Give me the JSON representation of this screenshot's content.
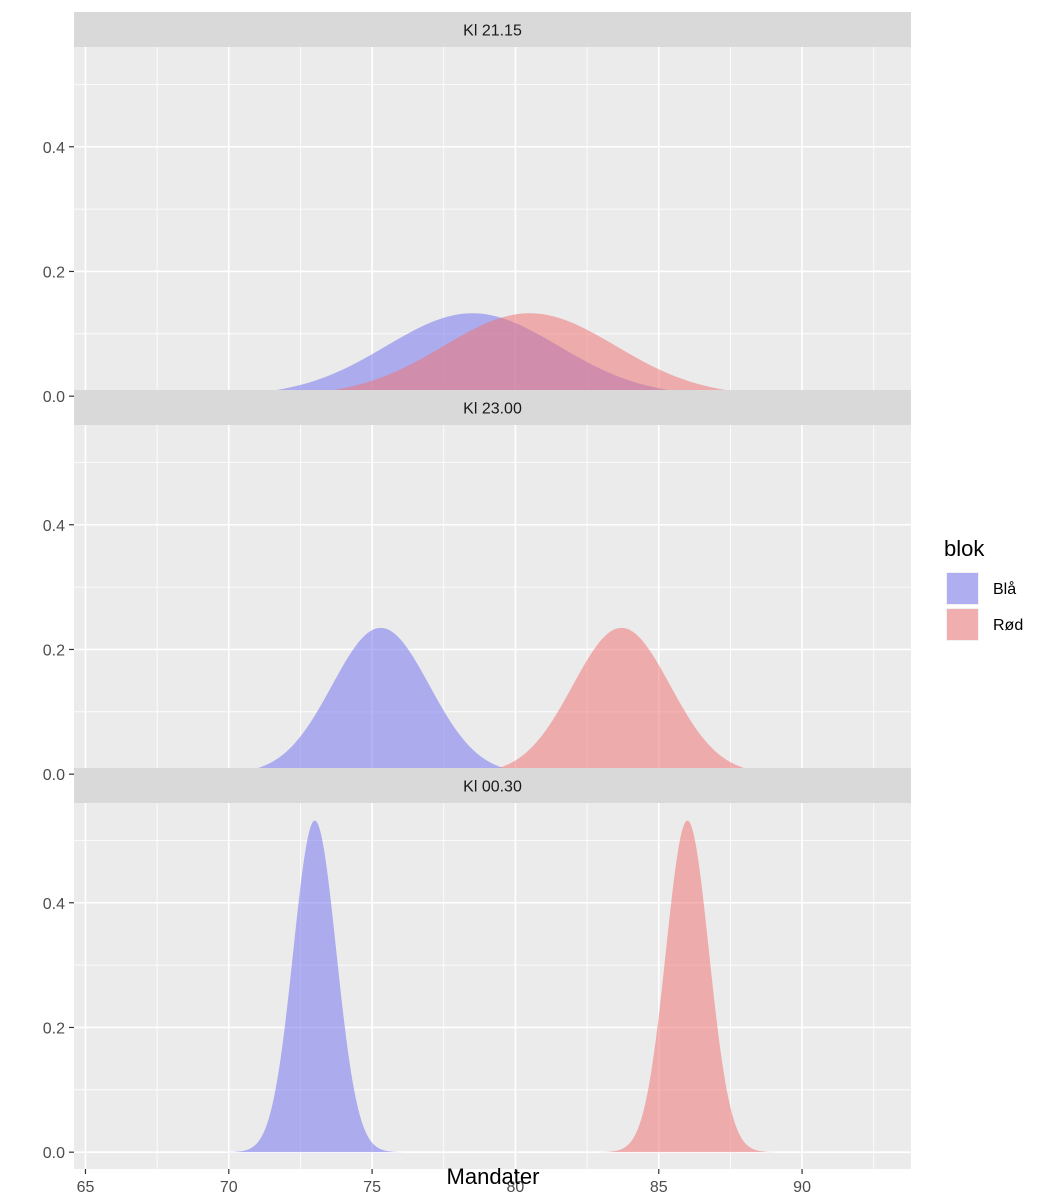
{
  "chart_data": {
    "type": "area",
    "subtype": "density",
    "xlabel": "Mandater",
    "ylabel": "",
    "xlim": [
      64.6,
      93.8
    ],
    "ylim": [
      -0.027,
      0.56
    ],
    "x_ticks": [
      65,
      70,
      75,
      80,
      85,
      90
    ],
    "y_ticks": [
      0.0,
      0.2,
      0.4
    ],
    "y_tick_labels": [
      "0.0",
      "0.2",
      "0.4"
    ],
    "grid": true,
    "legend": {
      "title": "blok",
      "position": "right",
      "entries": [
        {
          "label": "Blå",
          "color": "#7777ee"
        },
        {
          "label": "Rød",
          "color": "#ee7777"
        }
      ]
    },
    "series_colors": {
      "Blå": "#7777ee",
      "Rød": "#ee7777"
    },
    "fill_alpha": 0.55,
    "panels": [
      {
        "label": "Kl 21.15",
        "series": [
          {
            "block": "Blå",
            "mean": 78.5,
            "sd": 3.0
          },
          {
            "block": "Rød",
            "mean": 80.5,
            "sd": 3.0
          }
        ]
      },
      {
        "label": "Kl 23.00",
        "series": [
          {
            "block": "Blå",
            "mean": 75.3,
            "sd": 1.7
          },
          {
            "block": "Rød",
            "mean": 83.7,
            "sd": 1.7
          }
        ]
      },
      {
        "label": "Kl 00.30",
        "series": [
          {
            "block": "Blå",
            "mean": 73.0,
            "sd": 0.75
          },
          {
            "block": "Rød",
            "mean": 86.0,
            "sd": 0.75
          }
        ]
      }
    ]
  }
}
